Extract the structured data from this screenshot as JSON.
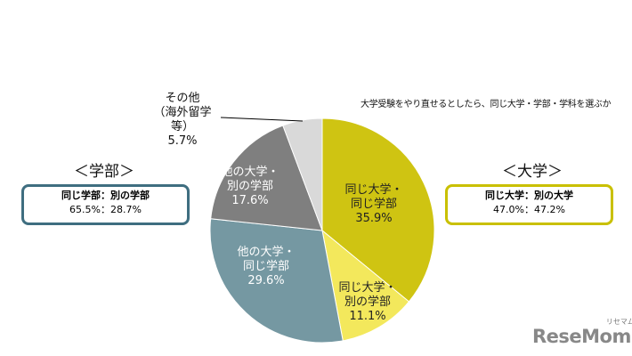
{
  "chart_data": {
    "type": "pie",
    "title": "大学受験をやり直せるとしたら、同じ大学・学部・学科を選ぶか",
    "slices": [
      {
        "label": [
          "同じ大学・",
          "同じ学部"
        ],
        "value": 35.9,
        "value_label": "35.9%",
        "color": "#cfc412",
        "text_color": "#222222"
      },
      {
        "label": [
          "同じ大学・",
          "別の学部"
        ],
        "value": 11.1,
        "value_label": "11.1%",
        "color": "#f3e85c",
        "text_color": "#222222"
      },
      {
        "label": [
          "他の大学・",
          "同じ学部"
        ],
        "value": 29.6,
        "value_label": "29.6%",
        "color": "#7598a2",
        "text_color": "#ffffff"
      },
      {
        "label": [
          "他の大学・",
          "別の学部"
        ],
        "value": 17.6,
        "value_label": "17.6%",
        "color": "#7f7f7f",
        "text_color": "#ffffff"
      },
      {
        "label": [
          "その他",
          "（海外留学",
          "等）"
        ],
        "value": 5.7,
        "value_label": "5.7%",
        "color": "#d9d9d9",
        "text_color": "#111111"
      }
    ],
    "start_angle": "top",
    "direction": "clockwise"
  },
  "faculty": {
    "title": "＜学部＞",
    "header": "同じ学部：別の学部",
    "values": "65.5%：28.7%",
    "color": "#3f6e80"
  },
  "university": {
    "title": "＜大学＞",
    "header": "同じ大学：別の大学",
    "values": "47.0%：47.2%",
    "color": "#c9c000"
  },
  "logo": {
    "text": "ReseMom",
    "sub": "リセマム"
  }
}
